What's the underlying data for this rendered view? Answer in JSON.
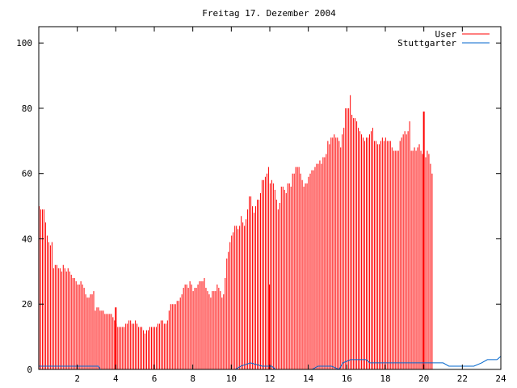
{
  "chart_data": {
    "type": "bar",
    "title": "Freitag 17. Dezember 2004",
    "xlabel": "",
    "ylabel": "",
    "xlim": [
      0,
      24
    ],
    "ylim": [
      0,
      105
    ],
    "x_ticks": [
      "2",
      "4",
      "6",
      "8",
      "10",
      "12",
      "14",
      "16",
      "18",
      "20",
      "22",
      "24"
    ],
    "y_ticks": [
      "0",
      "20",
      "40",
      "60",
      "80",
      "100"
    ],
    "grid": false,
    "legend_position": "top-right",
    "interval_hours": 0.0833,
    "series": [
      {
        "name": "User",
        "style": "impulses",
        "color": "#ff0000",
        "values": [
          50,
          49,
          49,
          49,
          45,
          41,
          39,
          38,
          39,
          31,
          32,
          32,
          31,
          31,
          30,
          32,
          31,
          30,
          31,
          30,
          29,
          28,
          28,
          27,
          26,
          26,
          27,
          26,
          25,
          23,
          22,
          22,
          23,
          23,
          24,
          18,
          19,
          19,
          18,
          18,
          18,
          17,
          17,
          17,
          17,
          17,
          16,
          15,
          14,
          13,
          13,
          13,
          13,
          13,
          14,
          14,
          15,
          15,
          14,
          14,
          15,
          14,
          13,
          13,
          13,
          12,
          11,
          12,
          12,
          13,
          13,
          13,
          13,
          13,
          14,
          14,
          15,
          15,
          14,
          14,
          15,
          18,
          20,
          20,
          20,
          20,
          21,
          21,
          22,
          23,
          25,
          26,
          26,
          25,
          27,
          26,
          24,
          25,
          25,
          26,
          27,
          27,
          27,
          28,
          25,
          24,
          23,
          22,
          24,
          24,
          24,
          26,
          25,
          24,
          22,
          23,
          28,
          34,
          36,
          39,
          41,
          42,
          44,
          44,
          43,
          44,
          47,
          45,
          44,
          46,
          49,
          53,
          53,
          50,
          48,
          50,
          52,
          52,
          54,
          58,
          58,
          59,
          60,
          62,
          57,
          58,
          57,
          55,
          52,
          49,
          51,
          56,
          56,
          55,
          54,
          57,
          57,
          56,
          60,
          60,
          62,
          62,
          62,
          60,
          58,
          56,
          57,
          57,
          59,
          60,
          61,
          61,
          62,
          63,
          63,
          64,
          63,
          65,
          65,
          66,
          70,
          69,
          71,
          71,
          72,
          71,
          71,
          70,
          68,
          72,
          74,
          80,
          80,
          80,
          84,
          78,
          77,
          77,
          76,
          74,
          73,
          72,
          71,
          70,
          71,
          71,
          72,
          73,
          74,
          70,
          70,
          69,
          69,
          70,
          71,
          70,
          71,
          70,
          70,
          70,
          68,
          67,
          67,
          67,
          67,
          70,
          71,
          72,
          73,
          72,
          73,
          76,
          67,
          67,
          68,
          67,
          68,
          69,
          67,
          66,
          68,
          65,
          67,
          66,
          63,
          60
        ],
        "spikes": [
          {
            "x": 4.0,
            "value": 19
          },
          {
            "x": 12.0,
            "value": 26
          },
          {
            "x": 20.0,
            "value": 79
          }
        ]
      },
      {
        "name": "Stuttgarter",
        "style": "lines",
        "color": "#0066cc",
        "points": [
          [
            0,
            1
          ],
          [
            3.1,
            1
          ],
          [
            3.2,
            0
          ],
          [
            10.2,
            0
          ],
          [
            10.5,
            1
          ],
          [
            11.0,
            2
          ],
          [
            11.6,
            1
          ],
          [
            12.1,
            1
          ],
          [
            12.3,
            0
          ],
          [
            14.2,
            0
          ],
          [
            14.5,
            1
          ],
          [
            15.2,
            1
          ],
          [
            15.6,
            0
          ],
          [
            15.8,
            2
          ],
          [
            16.2,
            3
          ],
          [
            17.0,
            3
          ],
          [
            17.2,
            2
          ],
          [
            20.0,
            2
          ],
          [
            21.0,
            2
          ],
          [
            21.3,
            1
          ],
          [
            22.6,
            1
          ],
          [
            23.0,
            2
          ],
          [
            23.3,
            3
          ],
          [
            23.8,
            3
          ],
          [
            24,
            4
          ]
        ]
      }
    ]
  }
}
